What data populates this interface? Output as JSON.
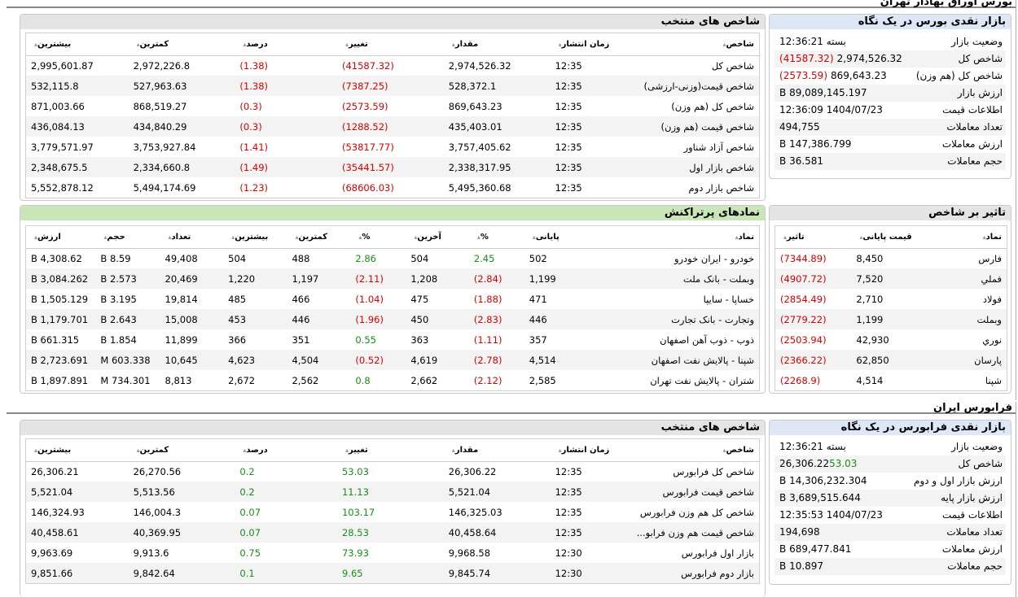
{
  "tse": {
    "title": "بورس اوراق بهادار تهران",
    "selected_indices": {
      "title": "شاخص های منتخب",
      "headers": [
        "شاخص",
        "زمان انتشار",
        "مقدار",
        "تغییر",
        "درصد",
        "کمترین",
        "بیشترین"
      ],
      "rows": [
        [
          "شاخص کل",
          "12:35",
          "2,974,526.32",
          "(41587.32)",
          "(1.38)",
          "2,972,226.8",
          "2,995,601.87"
        ],
        [
          "شاخص قیمت(وزنی-ارزشی)",
          "12:35",
          "528,372.1",
          "(7387.25)",
          "(1.38)",
          "527,963.63",
          "532,115.8"
        ],
        [
          "شاخص کل (هم وزن)",
          "12:35",
          "869,643.23",
          "(2573.59)",
          "(0.3)",
          "868,519.27",
          "871,003.66"
        ],
        [
          "شاخص قیمت (هم وزن)",
          "12:35",
          "435,403.01",
          "(1288.52)",
          "(0.3)",
          "434,840.29",
          "436,084.13"
        ],
        [
          "شاخص آزاد شناور",
          "12:35",
          "3,757,405.62",
          "(53817.77)",
          "(1.41)",
          "3,753,927.84",
          "3,779,571.97"
        ],
        [
          "شاخص بازار اول",
          "12:35",
          "2,338,317.95",
          "(35441.57)",
          "(1.49)",
          "2,334,660.8",
          "2,348,675.5"
        ],
        [
          "شاخص بازار دوم",
          "12:35",
          "5,495,360.68",
          "(68606.03)",
          "(1.23)",
          "5,494,174.69",
          "5,552,878.12"
        ]
      ]
    },
    "glance": {
      "title": "بازار نقدی بورس در یک نگاه",
      "rows": [
        {
          "k": "وضعیت بازار",
          "v": "بسته 12:36:21",
          "c": ""
        },
        {
          "k": "شاخص کل",
          "v": "2,974,526.32",
          "c": "(41587.32)"
        },
        {
          "k": "شاخص کل (هم وزن)",
          "v": "869,643.23",
          "c": "(2573.59)"
        },
        {
          "k": "ارزش بازار",
          "v": "89,089,145.197 B",
          "c": ""
        },
        {
          "k": "اطلاعات قیمت",
          "v": "1404/07/23 12:36:09",
          "c": ""
        },
        {
          "k": "تعداد معاملات",
          "v": "494,755",
          "c": ""
        },
        {
          "k": "ارزش معاملات",
          "v": "147,386.799 B",
          "c": ""
        },
        {
          "k": "حجم معاملات",
          "v": "36.581 B",
          "c": ""
        }
      ]
    },
    "top_traded": {
      "title": "نمادهای پرتراکنش",
      "headers": [
        "نماد",
        "پایانی",
        "%",
        "آخرین",
        "%",
        "کمترین",
        "بیشترین",
        "تعداد",
        "حجم",
        "ارزش"
      ],
      "rows": [
        [
          "خودرو - ایران خودرو",
          "502",
          "2.45",
          "504",
          "2.86",
          "488",
          "504",
          "49,408",
          "8.59 B",
          "4,308.62 B"
        ],
        [
          "وبملت - بانک ملت",
          "1,199",
          "(2.84)",
          "1,208",
          "(2.11)",
          "1,197",
          "1,220",
          "20,469",
          "2.573 B",
          "3,084.262 B"
        ],
        [
          "خساپا - سایپا",
          "471",
          "(1.88)",
          "475",
          "(1.04)",
          "466",
          "485",
          "19,814",
          "3.195 B",
          "1,505.129 B"
        ],
        [
          "وتجارت - بانک تجارت",
          "446",
          "(2.83)",
          "450",
          "(1.96)",
          "446",
          "453",
          "15,008",
          "2.643 B",
          "1,179.701 B"
        ],
        [
          "ذوب - ذوب آهن اصفهان",
          "357",
          "(1.11)",
          "363",
          "0.55",
          "351",
          "366",
          "11,899",
          "1.854 B",
          "661.315 B"
        ],
        [
          "شپنا - پالایش نفت اصفهان",
          "4,514",
          "(2.78)",
          "4,619",
          "(0.52)",
          "4,504",
          "4,623",
          "10,645",
          "603.338 M",
          "2,723.691 B"
        ],
        [
          "شتران - پالایش نفت تهران",
          "2,585",
          "(2.12)",
          "2,662",
          "0.8",
          "2,562",
          "2,672",
          "8,813",
          "734.301 M",
          "1,897.891 B"
        ]
      ]
    },
    "index_impact": {
      "title": "تاثیر بر شاخص",
      "headers": [
        "نماد",
        "قیمت پایانی",
        "تاثیر"
      ],
      "rows": [
        [
          "فارس",
          "8,450",
          "(7344.89)"
        ],
        [
          "فملي",
          "7,520",
          "(4907.72)"
        ],
        [
          "فولاد",
          "2,710",
          "(2854.49)"
        ],
        [
          "وبملت",
          "1,199",
          "(2779.22)"
        ],
        [
          "نوري",
          "42,930",
          "(2503.94)"
        ],
        [
          "پارسان",
          "62,850",
          "(2366.22)"
        ],
        [
          "شپنا",
          "4,514",
          "(2268.9)"
        ]
      ]
    }
  },
  "ifb": {
    "title": "فرابورس ایران",
    "selected_indices": {
      "title": "شاخص های منتخب",
      "headers": [
        "شاخص",
        "زمان انتشار",
        "مقدار",
        "تغییر",
        "درصد",
        "کمترین",
        "بیشترین"
      ],
      "rows": [
        [
          "شاخص کل فرابورس",
          "12:35",
          "26,306.22",
          "53.03",
          "0.2",
          "26,270.56",
          "26,306.21"
        ],
        [
          "شاخص قیمت فرابورس",
          "12:35",
          "5,521.04",
          "11.13",
          "0.2",
          "5,513.56",
          "5,521.04"
        ],
        [
          "شاخص کل هم وزن فرابورس",
          "12:35",
          "146,325.03",
          "103.17",
          "0.07",
          "146,004.3",
          "146,324.93"
        ],
        [
          "شاخص قیمت هم وزن فرابو...",
          "12:35",
          "40,458.64",
          "28.53",
          "0.07",
          "40,369.95",
          "40,458.61"
        ],
        [
          "بازار اول فرابورس",
          "12:30",
          "9,968.58",
          "73.93",
          "0.75",
          "9,913.6",
          "9,963.69"
        ],
        [
          "بازار دوم فرابورس",
          "12:30",
          "9,845.74",
          "9.65",
          "0.1",
          "9,842.64",
          "9,851.66"
        ]
      ]
    },
    "glance": {
      "title": "بازار نقدی فرابورس در یک نگاه",
      "rows": [
        {
          "k": "وضعیت بازار",
          "v": "بسته 12:36:21",
          "c": ""
        },
        {
          "k": "شاخص کل",
          "v": "26,306.22",
          "c": "53.03"
        },
        {
          "k": "ارزش بازار اول و دوم",
          "v": "14,306,232.304 B",
          "c": ""
        },
        {
          "k": "ارزش بازار پایه",
          "v": "3,689,515.644 B",
          "c": ""
        },
        {
          "k": "اطلاعات قیمت",
          "v": "1404/07/23 12:35:53",
          "c": ""
        },
        {
          "k": "تعداد معاملات",
          "v": "194,698",
          "c": ""
        },
        {
          "k": "ارزش معاملات",
          "v": "689,477.841 B",
          "c": ""
        },
        {
          "k": "حجم معاملات",
          "v": "10.897 B",
          "c": ""
        }
      ]
    }
  }
}
